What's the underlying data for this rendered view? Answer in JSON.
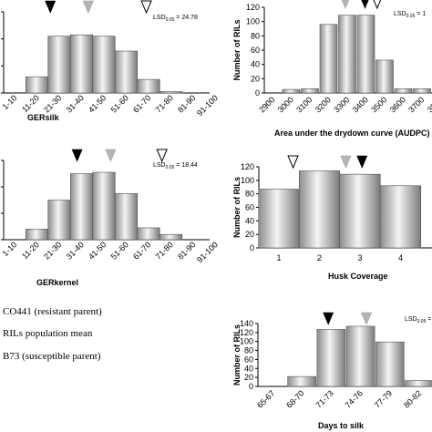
{
  "chart_data": [
    {
      "id": "gersilk",
      "type": "bar",
      "xlabel": "GERsilk",
      "ylabel": "",
      "lsd": "24.78",
      "categories": [
        "1-10",
        "11-20",
        "21-30",
        "31-40",
        "41-50",
        "51-60",
        "61-70",
        "71-80",
        "81-90",
        "91-100"
      ],
      "values": [
        0,
        12,
        42,
        43,
        42,
        31,
        10,
        1,
        0,
        0
      ],
      "ylim": [
        0,
        60
      ],
      "markers": [
        {
          "type": "resistant",
          "x_index": 1.6
        },
        {
          "type": "mean",
          "x_index": 3.3
        },
        {
          "type": "susceptible",
          "x_index": 5.9
        }
      ]
    },
    {
      "id": "audpc",
      "type": "bar",
      "xlabel": "Area under the drydown curve (AUDPC)",
      "ylabel": "Number of RILs",
      "lsd": "1",
      "categories": [
        "2900",
        "3000",
        "3100",
        "3200",
        "3300",
        "3400",
        "3500",
        "3600",
        "3700",
        "3800"
      ],
      "yticks": [
        0,
        20,
        40,
        60,
        80,
        100,
        120
      ],
      "values": [
        0,
        5,
        6,
        96,
        109,
        109,
        46,
        6,
        6,
        0
      ],
      "ylim": [
        0,
        120
      ],
      "markers": [
        {
          "type": "mean",
          "x_index": 3.9
        },
        {
          "type": "resistant",
          "x_index": 4.95
        },
        {
          "type": "susceptible",
          "x_index": 5.6
        }
      ]
    },
    {
      "id": "gerkernel",
      "type": "bar",
      "xlabel": "GERkernel",
      "ylabel": "",
      "lsd": "18.44",
      "categories": [
        "1-10",
        "11-20",
        "21-30",
        "31-40",
        "41-50",
        "51-60",
        "61-70",
        "71-80",
        "81-90",
        "91-100"
      ],
      "values": [
        0,
        8,
        30,
        50,
        51,
        35,
        9,
        4,
        0,
        0
      ],
      "ylim": [
        0,
        60
      ],
      "markers": [
        {
          "type": "resistant",
          "x_index": 2.8
        },
        {
          "type": "mean",
          "x_index": 4.3
        },
        {
          "type": "susceptible",
          "x_index": 6.6
        }
      ]
    },
    {
      "id": "husk",
      "type": "bar",
      "xlabel": "Husk Coverage",
      "ylabel": "Number of RILs",
      "lsd": "",
      "categories": [
        "1",
        "2",
        "3",
        "4"
      ],
      "yticks": [
        0,
        20,
        40,
        60,
        80,
        100,
        120
      ],
      "values": [
        87,
        114,
        109,
        92
      ],
      "ylim": [
        0,
        120
      ],
      "markers": [
        {
          "type": "susceptible",
          "x_index": 0.35
        },
        {
          "type": "mean",
          "x_index": 1.65
        },
        {
          "type": "resistant",
          "x_index": 2.05
        }
      ]
    },
    {
      "id": "days",
      "type": "bar",
      "xlabel": "Days to silk",
      "ylabel": "Number of RILs",
      "lsd": "",
      "categories": [
        "65-67",
        "68-70",
        "71-73",
        "74-76",
        "77-79",
        "80-82"
      ],
      "yticks": [
        0,
        20,
        40,
        60,
        80,
        100,
        120,
        140
      ],
      "values": [
        0,
        22,
        127,
        134,
        99,
        13
      ],
      "ylim": [
        0,
        140
      ],
      "markers": [
        {
          "type": "resistant",
          "x_index": 1.9
        },
        {
          "type": "mean",
          "x_index": 3.2
        }
      ]
    }
  ],
  "legend": [
    {
      "type": "resistant",
      "label": "CO441 (resistant parent)"
    },
    {
      "type": "mean",
      "label": "RILs population mean"
    },
    {
      "type": "susceptible",
      "label": "B73 (susceptible parent)"
    }
  ],
  "lsd_prefix": "LSD",
  "lsd_sub": "0.05",
  "colors": {
    "resistant": "#000000",
    "mean": "#b5b5b5",
    "susceptible": "#ffffff",
    "axis": "#000000"
  }
}
